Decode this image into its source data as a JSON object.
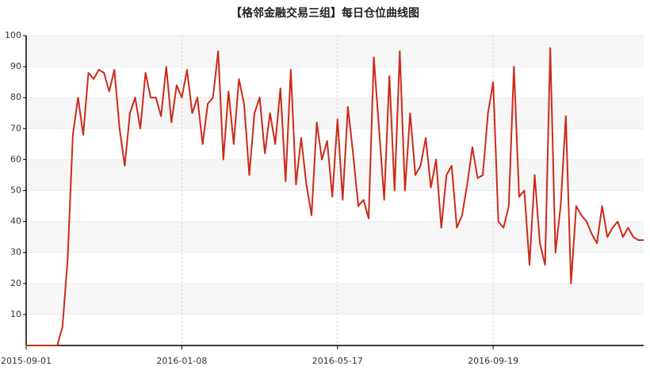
{
  "chart_data": {
    "type": "line",
    "title": "【格邻金融交易三组】每日仓位曲线图",
    "categories": [
      "2015-09-01",
      null,
      null,
      null,
      null,
      null,
      null,
      null,
      null,
      null,
      null,
      null,
      null,
      null,
      null,
      null,
      null,
      null,
      null,
      null,
      null,
      null,
      null,
      null,
      null,
      null,
      null,
      null,
      null,
      null,
      "2016-01-08",
      null,
      null,
      null,
      null,
      null,
      null,
      null,
      null,
      null,
      null,
      null,
      null,
      null,
      null,
      null,
      null,
      null,
      null,
      null,
      null,
      null,
      null,
      null,
      null,
      null,
      null,
      null,
      null,
      null,
      "2016-05-17",
      null,
      null,
      null,
      null,
      null,
      null,
      null,
      null,
      null,
      null,
      null,
      null,
      null,
      null,
      null,
      null,
      null,
      null,
      null,
      null,
      null,
      null,
      null,
      null,
      null,
      null,
      null,
      null,
      null,
      "2016-09-19",
      null,
      null,
      null,
      null,
      null,
      null,
      null,
      null,
      null,
      null,
      null,
      null,
      null,
      null,
      null,
      null,
      null,
      null,
      null,
      null,
      null,
      null,
      null,
      null,
      null,
      null,
      null,
      null,
      null
    ],
    "values": [
      0,
      0,
      0,
      0,
      0,
      0,
      0,
      6,
      28,
      68,
      80,
      68,
      88,
      86,
      89,
      88,
      82,
      89,
      70,
      58,
      75,
      80,
      70,
      88,
      80,
      80,
      74,
      90,
      72,
      84,
      80,
      89,
      75,
      80,
      65,
      78,
      80,
      95,
      60,
      82,
      65,
      86,
      78,
      55,
      75,
      80,
      62,
      75,
      65,
      83,
      53,
      89,
      52,
      67,
      52,
      42,
      72,
      60,
      66,
      48,
      73,
      47,
      77,
      62,
      45,
      47,
      41,
      93,
      70,
      47,
      87,
      50,
      95,
      50,
      75,
      55,
      58,
      67,
      51,
      60,
      38,
      55,
      58,
      38,
      42,
      52,
      64,
      54,
      55,
      75,
      85,
      40,
      38,
      45,
      90,
      48,
      50,
      26,
      55,
      33,
      26,
      96,
      30,
      45,
      74,
      20,
      45,
      42,
      40,
      36,
      33,
      45,
      35,
      38,
      40,
      35,
      38,
      35,
      34,
      34
    ],
    "color": "#cc2a1a",
    "ylim": [
      0,
      100
    ],
    "yticks": [
      10,
      20,
      30,
      40,
      50,
      60,
      70,
      80,
      90,
      100
    ],
    "grid": true
  }
}
